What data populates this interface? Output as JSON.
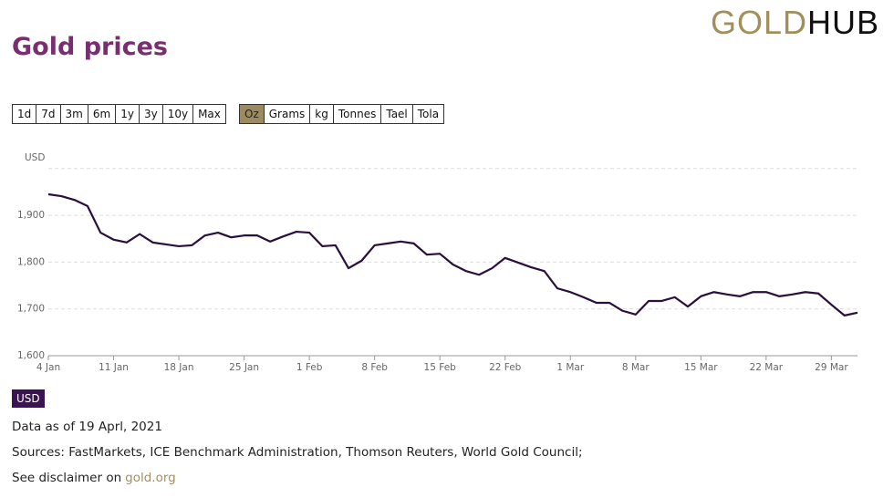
{
  "header": {
    "title": "Gold prices",
    "logo": [
      "GOLD",
      "HUB"
    ]
  },
  "time_ranges": [
    "1d",
    "7d",
    "3m",
    "6m",
    "1y",
    "3y",
    "10y",
    "Max"
  ],
  "units": [
    "Oz",
    "Grams",
    "kg",
    "Tonnes",
    "Tael",
    "Tola"
  ],
  "selected_unit": 0,
  "currency": "USD",
  "chart_data": {
    "type": "line",
    "y_label": "USD",
    "categories": [
      "4 Jan",
      null,
      null,
      null,
      null,
      "11 Jan",
      null,
      null,
      null,
      null,
      "18 Jan",
      null,
      null,
      null,
      null,
      "25 Jan",
      null,
      null,
      null,
      null,
      "1 Feb",
      null,
      null,
      null,
      null,
      "8 Feb",
      null,
      null,
      null,
      null,
      "15 Feb",
      null,
      null,
      null,
      null,
      "22 Feb",
      null,
      null,
      null,
      null,
      "1 Mar",
      null,
      null,
      null,
      null,
      "8 Mar",
      null,
      null,
      null,
      null,
      "15 Mar",
      null,
      null,
      null,
      null,
      "22 Mar",
      null,
      null,
      null,
      null,
      "29 Mar",
      null,
      null
    ],
    "series": [
      {
        "name": "USD",
        "color": "#2a0e3c",
        "values": [
          1945,
          1941,
          1933,
          1920,
          1863,
          1848,
          1842,
          1860,
          1842,
          1838,
          1834,
          1836,
          1857,
          1863,
          1853,
          1857,
          1857,
          1844,
          1855,
          1865,
          1863,
          1834,
          1836,
          1787,
          1803,
          1836,
          1840,
          1844,
          1840,
          1816,
          1818,
          1795,
          1781,
          1773,
          1787,
          1809,
          1799,
          1789,
          1781,
          1744,
          1736,
          1725,
          1713,
          1713,
          1696,
          1688,
          1717,
          1717,
          1725,
          1705,
          1727,
          1736,
          1731,
          1727,
          1736,
          1736,
          1727,
          1731,
          1736,
          1733,
          1709,
          1686,
          1692
        ]
      }
    ],
    "ylim": [
      1600,
      2000
    ],
    "yticks": [
      {
        "value": 1600,
        "label": "1,600"
      },
      {
        "value": 1700,
        "label": "1,700"
      },
      {
        "value": 1800,
        "label": "1,800"
      },
      {
        "value": 1900,
        "label": "1,900"
      }
    ],
    "grid": true
  },
  "footer": {
    "data_as_of": "Data as of 19 Aprl, 2021",
    "sources": "Sources: FastMarkets, ICE Benchmark Administration, Thomson Reuters, World Gold Council;",
    "disclaimer": "See disclaimer on",
    "link": "gold.org"
  }
}
